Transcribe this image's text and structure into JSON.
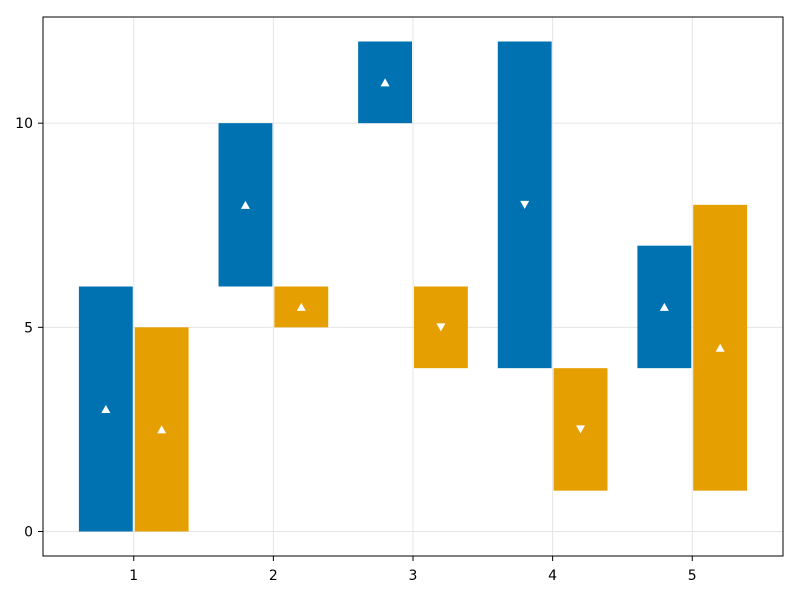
{
  "chart_data": {
    "type": "bar",
    "subtype": "floating-range-dodged",
    "x_ticks": [
      1,
      2,
      3,
      4,
      5
    ],
    "y_ticks": [
      0,
      5,
      10
    ],
    "xlim": [
      0.35,
      5.65
    ],
    "ylim": [
      -0.6,
      12.6
    ],
    "grid": true,
    "colors": [
      "#0072b2",
      "#e69f00"
    ],
    "marker_color": "#ffffff",
    "series": [
      {
        "color": "#0072b2",
        "bars": [
          {
            "x": 1,
            "from": 0,
            "to": 6
          },
          {
            "x": 2,
            "from": 6,
            "to": 10
          },
          {
            "x": 3,
            "from": 10,
            "to": 12
          },
          {
            "x": 4,
            "from": 12,
            "to": 4
          },
          {
            "x": 5,
            "from": 4,
            "to": 7
          }
        ]
      },
      {
        "color": "#e69f00",
        "bars": [
          {
            "x": 1,
            "from": 0,
            "to": 5
          },
          {
            "x": 2,
            "from": 5,
            "to": 6
          },
          {
            "x": 3,
            "from": 6,
            "to": 4
          },
          {
            "x": 4,
            "from": 4,
            "to": 1
          },
          {
            "x": 5,
            "from": 1,
            "to": 8
          }
        ]
      }
    ]
  }
}
